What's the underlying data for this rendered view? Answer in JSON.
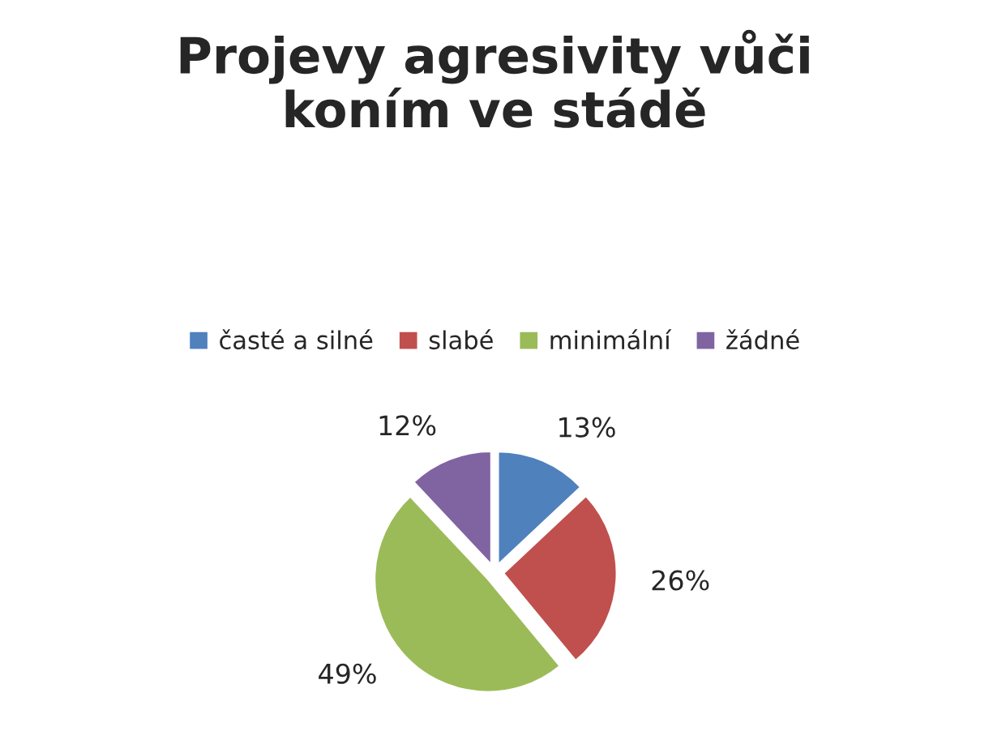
{
  "chart_data": {
    "type": "pie",
    "title": "Projevy agresivity vůči\nkoním ve stádě",
    "categories": [
      "časté a silné",
      "slabé",
      "minimální",
      "žádné"
    ],
    "values": [
      13,
      26,
      49,
      12
    ],
    "colors": [
      "#4f81bd",
      "#c0504d",
      "#9bbb59",
      "#8064a2"
    ],
    "value_labels": [
      "13%",
      "26%",
      "49%",
      "12%"
    ],
    "legend": "top"
  }
}
